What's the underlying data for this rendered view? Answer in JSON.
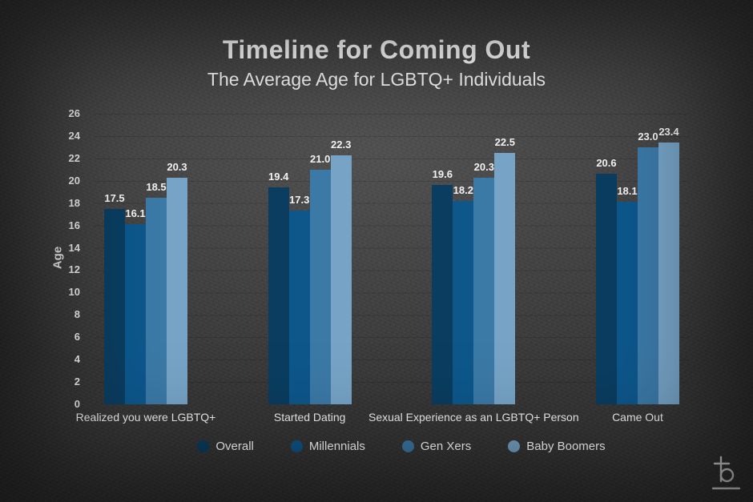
{
  "title": "Timeline for Coming Out",
  "subtitle": "The Average Age for LGBTQ+ Individuals",
  "chart_data": {
    "type": "bar",
    "title": "Timeline for Coming Out",
    "subtitle": "The Average Age for LGBTQ+ Individuals",
    "categories": [
      "Realized you were LGBTQ+",
      "Started Dating",
      "Sexual Experience as an LGBTQ+ Person",
      "Came Out"
    ],
    "series": [
      {
        "name": "Overall",
        "color": "#0a3d60",
        "values": [
          17.5,
          19.4,
          19.6,
          20.6
        ]
      },
      {
        "name": "Millennials",
        "color": "#0d578b",
        "values": [
          16.1,
          17.3,
          18.2,
          18.1
        ]
      },
      {
        "name": "Gen Xers",
        "color": "#3b79a6",
        "values": [
          18.5,
          21.0,
          20.3,
          23.0
        ]
      },
      {
        "name": "Baby Boomers",
        "color": "#76a3c6",
        "values": [
          20.3,
          22.3,
          22.5,
          23.4
        ]
      }
    ],
    "xlabel": "",
    "ylabel": "Age",
    "ylim": [
      0,
      26
    ],
    "ytick_step": 2,
    "grid": "faint-horizontal",
    "legend_position": "bottom",
    "value_labels_shown": true,
    "value_label_decimals": 1
  },
  "logo": {
    "icon": "b-crossbar-underline-logo"
  }
}
